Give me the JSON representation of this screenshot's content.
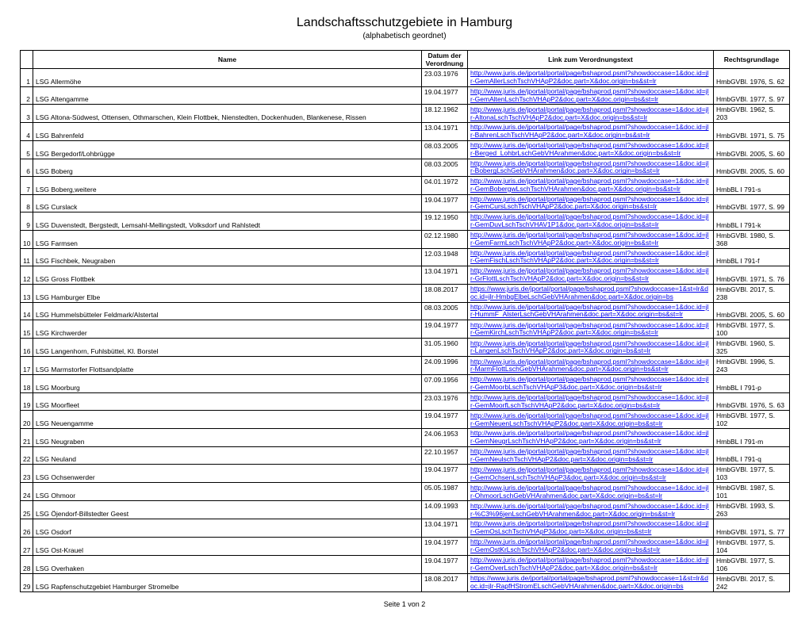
{
  "title": "Landschaftsschutzgebiete in Hamburg",
  "subtitle": "(alphabetisch  geordnet)",
  "footer": "Seite 1 von 2",
  "columns": {
    "name": "Name",
    "date": "Datum der Verordnung",
    "link": "Link zum Verordnungstext",
    "basis": "Rechtsgrundlage"
  },
  "rows": [
    {
      "n": "1",
      "name": "LSG Allermöhe",
      "date": "23.03.1976",
      "url": "http://www.juris.de/jportal/portal/page/bshaprod.psml?showdoccase=1&doc.id=jlr-GemAllerLschTschVHApP2&doc.part=X&doc.origin=bs&st=lr",
      "basis": "HmbGVBl. 1976, S. 62"
    },
    {
      "n": "2",
      "name": "LSG Altengamme",
      "date": "19.04.1977",
      "url": "http://www.juris.de/jportal/portal/page/bshaprod.psml?showdoccase=1&doc.id=jlr-GemAltenLschTschVHApP2&doc.part=X&doc.origin=bs&st=lr",
      "basis": "HmbGVBl. 1977, S. 97"
    },
    {
      "n": "3",
      "name": "LSG Altona-Südwest, Ottensen, Othmarschen, Klein Flottbek, Nienstedten, Dockenhuden, Blankenese, Rissen",
      "date": "18.12.1962",
      "url": "http://www.juris.de/jportal/portal/page/bshaprod.psml?showdoccase=1&doc.id=jlr-AltonaLschTschVHApP2&doc.part=X&doc.origin=bs&st=lr",
      "basis": "HmbGVBl. 1962, S. 203"
    },
    {
      "n": "4",
      "name": "LSG Bahrenfeld",
      "date": "13.04.1971",
      "url": "http://www.juris.de/jportal/portal/page/bshaprod.psml?showdoccase=1&doc.id=jlr-BahrenLschTschVHApP2&doc.part=X&doc.origin=bs&st=lr",
      "basis": "HmbGVBl. 1971, S. 75"
    },
    {
      "n": "5",
      "name": "LSG Bergedorf/Lohbrügge",
      "date": "08.03.2005",
      "url": "http://www.juris.de/jportal/portal/page/bshaprod.psml?showdoccase=1&doc.id=jlr-Berged_LohbrLschGebVHArahmen&doc.part=X&doc.origin=bs&st=lr",
      "basis": "HmbGVBl. 2005, S. 60"
    },
    {
      "n": "6",
      "name": "LSG Boberg",
      "date": "08.03.2005",
      "url": "http://www.juris.de/jportal/portal/page/bshaprod.psml?showdoccase=1&doc.id=jlr-BobergLschGebVHArahmen&doc.part=X&doc.origin=bs&st=lr",
      "basis": "HmbGVBl. 2005, S. 60"
    },
    {
      "n": "7",
      "name": "LSG Boberg,weitere",
      "date": "04.01.1972",
      "url": "http://www.juris.de/jportal/portal/page/bshaprod.psml?showdoccase=1&doc.id=jlr-GemBobergwLschTschVHArahmen&doc.part=X&doc.origin=bs&st=lr",
      "basis": "HmbBL I 791-s"
    },
    {
      "n": "8",
      "name": "LSG Curslack",
      "date": "19.04.1977",
      "url": "http://www.juris.de/jportal/portal/page/bshaprod.psml?showdoccase=1&doc.id=jlr-GemCursLschTschVHApP2&doc.part=X&doc.origin=bs&st=lr",
      "basis": "HmbGVBl. 1977, S. 99"
    },
    {
      "n": "9",
      "name": "LSG Duvenstedt, Bergstedt, Lemsahl-Mellingstedt, Volksdorf und Rahlstedt",
      "date": "19.12.1950",
      "url": "http://www.juris.de/jportal/portal/page/bshaprod.psml?showdoccase=1&doc.id=jlr-GemDuvLschTschVHAV1P1&doc.part=X&doc.origin=bs&st=lr",
      "basis": "HmbBL I 791-k"
    },
    {
      "n": "10",
      "name": "LSG Farmsen",
      "date": "02.12.1980",
      "url": "http://www.juris.de/jportal/portal/page/bshaprod.psml?showdoccase=1&doc.id=jlr-GemFarmLschTschVHApP2&doc.part=X&doc.origin=bs&st=lr",
      "basis": "HmbGVBl. 1980, S. 368"
    },
    {
      "n": "11",
      "name": "LSG Fischbek, Neugraben",
      "date": "12.03.1948",
      "url": "http://www.juris.de/jportal/portal/page/bshaprod.psml?showdoccase=1&doc.id=jlr-GemFischLschTschVHApP2&doc.part=X&doc.origin=bs&st=lr",
      "basis": "HmbBL I 791-f"
    },
    {
      "n": "12",
      "name": "LSG Gross Flottbek",
      "date": "13.04.1971",
      "url": "http://www.juris.de/jportal/portal/page/bshaprod.psml?showdoccase=1&doc.id=jlr-GrFlottLschTschVHApP2&doc.part=X&doc.origin=bs&st=lr",
      "basis": "HmbGVBl. 1971, S. 76"
    },
    {
      "n": "13",
      "name": "LSG Hamburger Elbe",
      "date": "18.08.2017",
      "url": "https://www.juris.de/jportal/portal/page/bshaprod.psml?showdoccase=1&st=lr&doc.id=jlr-HmbgElbeLschGebVHArahmen&doc.part=X&doc.origin=bs",
      "basis": "HmbGVBl. 2017, S. 238"
    },
    {
      "n": "14",
      "name": "LSG Hummelsbütteler Feldmark/Alstertal",
      "date": "08.03.2005",
      "url": "http://www.juris.de/jportal/portal/page/bshaprod.psml?showdoccase=1&doc.id=jlr-HummF_AlsterLschGebVHArahmen&doc.part=X&doc.origin=bs&st=lr",
      "basis": "HmbGVBl. 2005, S. 60"
    },
    {
      "n": "15",
      "name": "LSG Kirchwerder",
      "date": "19.04.1977",
      "url": "http://www.juris.de/jportal/portal/page/bshaprod.psml?showdoccase=1&doc.id=jlr-GemKirchLschTschVHApP2&doc.part=X&doc.origin=bs&st=lr",
      "basis": "HmbGVBl. 1977, S. 100"
    },
    {
      "n": "16",
      "name": "LSG Langenhorn, Fuhlsbüttel, Kl. Borstel",
      "date": "31.05.1960",
      "url": "http://www.juris.de/jportal/portal/page/bshaprod.psml?showdoccase=1&doc.id=jlr-LangenLschTschVHApP2&doc.part=X&doc.origin=bs&st=lr",
      "basis": "HmbGVBl. 1960, S. 325"
    },
    {
      "n": "17",
      "name": "LSG Marmstorfer Flottsandplatte",
      "date": "24.09.1996",
      "url": "http://www.juris.de/jportal/portal/page/bshaprod.psml?showdoccase=1&doc.id=jlr-MarmFlottLschGebVHArahmen&doc.part=X&doc.origin=bs&st=lr",
      "basis": "HmbGVBl. 1996, S. 243"
    },
    {
      "n": "18",
      "name": "LSG Moorburg",
      "date": "07.09.1956",
      "url": "http://www.juris.de/jportal/portal/page/bshaprod.psml?showdoccase=1&doc.id=jlr-GemMoorbLschTschVHApP3&doc.part=X&doc.origin=bs&st=lr",
      "basis": "HmbBL I 791-p"
    },
    {
      "n": "19",
      "name": "LSG Moorfleet",
      "date": "23.03.1976",
      "url": "http://www.juris.de/jportal/portal/page/bshaprod.psml?showdoccase=1&doc.id=jlr-GemMoorfLschTschVHApP2&doc.part=X&doc.origin=bs&st=lr",
      "basis": "HmbGVBl. 1976, S. 63"
    },
    {
      "n": "20",
      "name": "LSG Neuengamme",
      "date": "19.04.1977",
      "url": "http://www.juris.de/jportal/portal/page/bshaprod.psml?showdoccase=1&doc.id=jlr-GemNeuenLschTschVHApP2&doc.part=X&doc.origin=bs&st=lr",
      "basis": "HmbGVBl. 1977, S. 102"
    },
    {
      "n": "21",
      "name": "LSG Neugraben",
      "date": "24.06.1953",
      "url": "http://www.juris.de/jportal/portal/page/bshaprod.psml?showdoccase=1&doc.id=jlr-GemNeugrLschTschVHApP2&doc.part=X&doc.origin=bs&st=lr",
      "basis": "HmbBL I 791-m"
    },
    {
      "n": "22",
      "name": "LSG Neuland",
      "date": "22.10.1957",
      "url": "http://www.juris.de/jportal/portal/page/bshaprod.psml?showdoccase=1&doc.id=jlr-GemNeulschTschVHApP2&doc.part=X&doc.origin=bs&st=lr",
      "basis": "HmbBL I 791-q"
    },
    {
      "n": "23",
      "name": "LSG Ochsenwerder",
      "date": "19.04.1977",
      "url": "http://www.juris.de/jportal/portal/page/bshaprod.psml?showdoccase=1&doc.id=jlr-GemOchsenLschTschVHApP3&doc.part=X&doc.origin=bs&st=lr",
      "basis": "HmbGVBl. 1977, S. 103"
    },
    {
      "n": "24",
      "name": "LSG Ohmoor",
      "date": "05.05.1987",
      "url": "http://www.juris.de/jportal/portal/page/bshaprod.psml?showdoccase=1&doc.id=jlr-OhmoorLschGebVHArahmen&doc.part=X&doc.origin=bs&st=lr",
      "basis": "HmbGVBl. 1987, S. 101"
    },
    {
      "n": "25",
      "name": "LSG Öjendorf-Billstedter Geest",
      "date": "14.09.1993",
      "url": "http://www.juris.de/jportal/portal/page/bshaprod.psml?showdoccase=1&doc.id=jlr-%C3%96jenLschGebVHArahmen&doc.part=X&doc.origin=bs&st=lr",
      "basis": "HmbGVBl. 1993, S. 263"
    },
    {
      "n": "26",
      "name": "LSG Osdorf",
      "date": "13.04.1971",
      "url": "http://www.juris.de/jportal/portal/page/bshaprod.psml?showdoccase=1&doc.id=jlr-GemOsLschTschVHApP3&doc.part=X&doc.origin=bs&st=lr",
      "basis": "HmbGVBl. 1971, S. 77"
    },
    {
      "n": "27",
      "name": "LSG Ost-Krauel",
      "date": "19.04.1977",
      "url": "http://www.juris.de/jportal/portal/page/bshaprod.psml?showdoccase=1&doc.id=jlr-GemOstKrLschTschVHApP2&doc.part=X&doc.origin=bs&st=lr",
      "basis": "HmbGVBl. 1977, S. 104"
    },
    {
      "n": "28",
      "name": "LSG Overhaken",
      "date": "19.04.1977",
      "url": "http://www.juris.de/jportal/portal/page/bshaprod.psml?showdoccase=1&doc.id=jlr-GemOverLschTschVHApP2&doc.part=X&doc.origin=bs&st=lr",
      "basis": "HmbGVBl. 1977, S. 106"
    },
    {
      "n": "29",
      "name": "LSG Rapfenschutzgebiet Hamburger Stromelbe",
      "date": "18.08.2017",
      "url": "https://www.juris.de/jportal/portal/page/bshaprod.psml?showdoccase=1&st=lr&doc.id=jlr-RapfHStromELschGebVHArahmen&doc.part=X&doc.origin=bs",
      "basis": "HmbGVBl. 2017, S. 242"
    }
  ]
}
